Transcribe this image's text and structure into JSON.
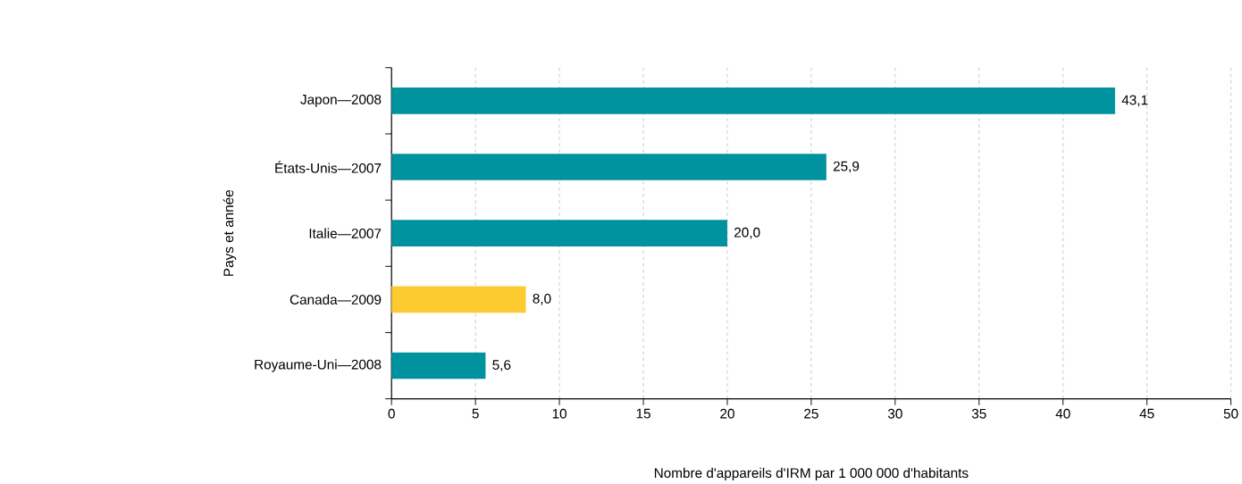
{
  "chart_data": {
    "type": "bar",
    "orientation": "horizontal",
    "categories": [
      "Japon—2008",
      "États-Unis—2007",
      "Italie—2007",
      "Canada—2009",
      "Royaume-Uni—2008"
    ],
    "values": [
      43.1,
      25.9,
      20.0,
      8.0,
      5.6
    ],
    "colors": [
      "#00929f",
      "#00929f",
      "#00929f",
      "#fdcb30",
      "#00929f"
    ],
    "value_labels": [
      "43,1",
      "25,9",
      "20,0",
      "8,0",
      "5,6"
    ],
    "xlabel": "Nombre d'appareils d'IRM par 1 000 000 d'habitants",
    "ylabel": "Pays et année",
    "xlim": [
      0,
      50
    ],
    "xticks": [
      0,
      5,
      10,
      15,
      20,
      25,
      30,
      35,
      40,
      45,
      50
    ],
    "grid": "x"
  }
}
